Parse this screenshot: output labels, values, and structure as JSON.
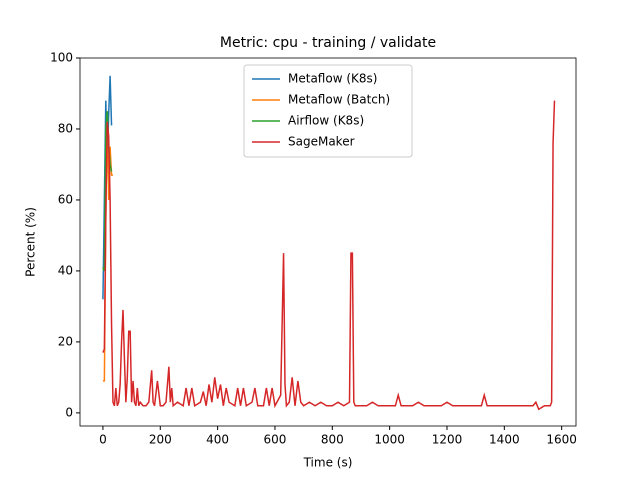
{
  "chart_data": {
    "type": "line",
    "title": "Metric: cpu - training / validate",
    "xlabel": "Time (s)",
    "ylabel": "Percent (%)",
    "xlim": [
      -80,
      1650
    ],
    "ylim": [
      -3.7,
      100
    ],
    "xticks": [
      0,
      200,
      400,
      600,
      800,
      1000,
      1200,
      1400,
      1600
    ],
    "yticks": [
      0,
      20,
      40,
      60,
      80,
      100
    ],
    "legend": "upper center",
    "series": [
      {
        "name": "Metaflow (K8s)",
        "color": "#1f77b4",
        "x": [
          0,
          5,
          10,
          15,
          20,
          25,
          30
        ],
        "values": [
          32,
          60,
          88,
          70,
          84,
          95,
          81
        ]
      },
      {
        "name": "Metaflow (Batch)",
        "color": "#ff7f0e",
        "x": [
          0,
          5,
          10,
          15,
          20,
          25,
          30,
          35
        ],
        "values": [
          9,
          9,
          55,
          85,
          60,
          75,
          67,
          67
        ]
      },
      {
        "name": "Airflow (K8s)",
        "color": "#2ca02c",
        "x": [
          0,
          5,
          10,
          15,
          20,
          25,
          30
        ],
        "values": [
          41,
          40,
          80,
          85,
          75,
          70,
          68
        ]
      },
      {
        "name": "SageMaker",
        "color": "#d62728",
        "x": [
          0,
          5,
          10,
          15,
          20,
          25,
          30,
          35,
          40,
          45,
          50,
          55,
          60,
          65,
          70,
          75,
          80,
          85,
          90,
          95,
          100,
          105,
          110,
          115,
          120,
          125,
          130,
          140,
          150,
          160,
          170,
          175,
          180,
          190,
          200,
          210,
          220,
          230,
          235,
          240,
          245,
          260,
          280,
          290,
          300,
          310,
          320,
          340,
          350,
          360,
          370,
          380,
          390,
          400,
          410,
          420,
          430,
          440,
          460,
          470,
          480,
          490,
          500,
          520,
          530,
          540,
          560,
          570,
          580,
          590,
          600,
          620,
          630,
          635,
          640,
          650,
          660,
          670,
          680,
          690,
          700,
          720,
          740,
          760,
          780,
          800,
          820,
          840,
          860,
          865,
          870,
          875,
          880,
          900,
          920,
          940,
          960,
          980,
          1000,
          1020,
          1030,
          1040,
          1060,
          1080,
          1100,
          1120,
          1140,
          1160,
          1180,
          1200,
          1220,
          1240,
          1260,
          1280,
          1300,
          1320,
          1330,
          1340,
          1360,
          1380,
          1400,
          1420,
          1440,
          1460,
          1480,
          1500,
          1510,
          1520,
          1540,
          1560,
          1565,
          1570,
          1575
        ],
        "values": [
          17,
          18,
          55,
          82,
          78,
          60,
          25,
          3,
          2,
          7,
          2,
          3,
          8,
          20,
          29,
          15,
          3,
          10,
          23,
          23,
          3,
          9,
          3,
          2,
          7,
          2,
          3,
          2,
          2,
          3,
          12,
          3,
          2,
          9,
          2,
          2,
          3,
          13,
          3,
          7,
          2,
          3,
          2,
          7,
          2,
          7,
          2,
          3,
          6,
          2,
          8,
          3,
          10,
          4,
          8,
          2,
          7,
          3,
          2,
          7,
          2,
          7,
          2,
          3,
          7,
          2,
          2,
          7,
          2,
          7,
          2,
          5,
          45,
          8,
          2,
          3,
          10,
          2,
          9,
          3,
          2,
          3,
          2,
          3,
          2,
          2,
          3,
          2,
          3,
          45,
          45,
          3,
          2,
          2,
          2,
          3,
          2,
          2,
          2,
          2,
          5,
          2,
          2,
          2,
          3,
          2,
          2,
          2,
          2,
          3,
          2,
          2,
          2,
          2,
          2,
          2,
          5,
          2,
          2,
          2,
          2,
          2,
          2,
          2,
          2,
          2,
          3,
          1,
          2,
          2,
          3,
          76,
          88
        ]
      }
    ]
  }
}
